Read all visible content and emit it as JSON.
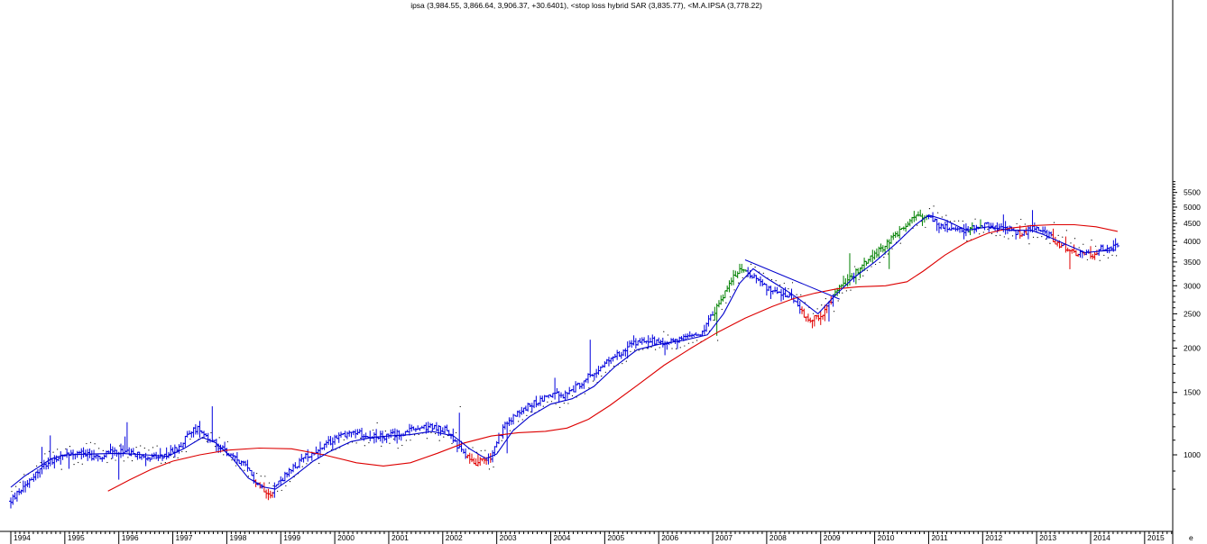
{
  "chart_data": {
    "type": "ohlc-bar",
    "title": "ipsa (3,984.55, 3,866.64, 3,906.37, +30.6401), <stop loss hybrid SAR (3,835.77), <M.A.IPSA (3,778.22)",
    "y_scale": "log",
    "ylim": [
      790,
      5950
    ],
    "xlim": [
      1994.0,
      2015.4
    ],
    "grid": false,
    "x_ticks": [
      "1994",
      "1995",
      "1996",
      "1997",
      "1998",
      "1999",
      "2000",
      "2001",
      "2002",
      "2003",
      "2004",
      "2005",
      "2006",
      "2007",
      "2008",
      "2009",
      "2010",
      "2011",
      "2012",
      "2013",
      "2014",
      "2015"
    ],
    "y_ticks": [
      1000,
      1500,
      2000,
      2500,
      3000,
      3500,
      4000,
      4500,
      5000,
      5500
    ],
    "axis_corner_label": "e",
    "colors": {
      "up_trend": "#008000",
      "down_trend": "#e00000",
      "neutral": "#0000dd",
      "fast_ma": "#0000cc",
      "slow_ma": "#dd0000",
      "sar": "#000000"
    },
    "price_anchors": [
      [
        1994.0,
        740
      ],
      [
        1994.3,
        840
      ],
      [
        1994.7,
        960
      ],
      [
        1995.0,
        1000
      ],
      [
        1995.3,
        1020
      ],
      [
        1995.6,
        980
      ],
      [
        1995.9,
        1030
      ],
      [
        1996.2,
        1010
      ],
      [
        1996.5,
        990
      ],
      [
        1996.8,
        980
      ],
      [
        1997.1,
        1050
      ],
      [
        1997.35,
        1170
      ],
      [
        1997.5,
        1190
      ],
      [
        1997.7,
        1100
      ],
      [
        1998.0,
        1010
      ],
      [
        1998.3,
        940
      ],
      [
        1998.6,
        820
      ],
      [
        1998.8,
        780
      ],
      [
        1999.0,
        850
      ],
      [
        1999.25,
        920
      ],
      [
        1999.5,
        1000
      ],
      [
        1999.8,
        1050
      ],
      [
        2000.0,
        1120
      ],
      [
        2000.3,
        1160
      ],
      [
        2000.6,
        1140
      ],
      [
        2000.9,
        1120
      ],
      [
        2001.2,
        1150
      ],
      [
        2001.5,
        1180
      ],
      [
        2001.8,
        1200
      ],
      [
        2002.1,
        1170
      ],
      [
        2002.3,
        1040
      ],
      [
        2002.6,
        950
      ],
      [
        2002.9,
        980
      ],
      [
        2003.1,
        1180
      ],
      [
        2003.4,
        1320
      ],
      [
        2003.7,
        1400
      ],
      [
        2004.0,
        1480
      ],
      [
        2004.3,
        1470
      ],
      [
        2004.6,
        1620
      ],
      [
        2004.9,
        1750
      ],
      [
        2005.2,
        1900
      ],
      [
        2005.5,
        2050
      ],
      [
        2005.8,
        2100
      ],
      [
        2006.1,
        2080
      ],
      [
        2006.5,
        2140
      ],
      [
        2006.8,
        2220
      ],
      [
        2007.1,
        2650
      ],
      [
        2007.35,
        3150
      ],
      [
        2007.6,
        3380
      ],
      [
        2007.85,
        3050
      ],
      [
        2008.1,
        2900
      ],
      [
        2008.4,
        2840
      ],
      [
        2008.7,
        2450
      ],
      [
        2008.9,
        2420
      ],
      [
        2009.1,
        2560
      ],
      [
        2009.3,
        2950
      ],
      [
        2009.6,
        3200
      ],
      [
        2009.9,
        3600
      ],
      [
        2010.2,
        3900
      ],
      [
        2010.5,
        4350
      ],
      [
        2010.8,
        4750
      ],
      [
        2011.0,
        4730
      ],
      [
        2011.2,
        4450
      ],
      [
        2011.5,
        4250
      ],
      [
        2011.8,
        4350
      ],
      [
        2012.1,
        4450
      ],
      [
        2012.4,
        4350
      ],
      [
        2012.7,
        4220
      ],
      [
        2012.95,
        4350
      ],
      [
        2013.15,
        4250
      ],
      [
        2013.4,
        3950
      ],
      [
        2013.7,
        3720
      ],
      [
        2014.0,
        3650
      ],
      [
        2014.2,
        3820
      ],
      [
        2014.5,
        3900
      ]
    ],
    "series": [
      {
        "values": [
          [
            1994.0,
            810
          ],
          [
            1994.25,
            870
          ],
          [
            1994.5,
            920
          ],
          [
            1994.75,
            975
          ],
          [
            1995.0,
            1000
          ],
          [
            1995.5,
            1005
          ],
          [
            1996.0,
            1010
          ],
          [
            1996.5,
            1000
          ],
          [
            1996.9,
            990
          ],
          [
            1997.2,
            1040
          ],
          [
            1997.55,
            1120
          ],
          [
            1997.8,
            1080
          ],
          [
            1998.1,
            980
          ],
          [
            1998.4,
            860
          ],
          [
            1998.7,
            810
          ],
          [
            1998.9,
            800
          ],
          [
            1999.2,
            860
          ],
          [
            1999.6,
            960
          ],
          [
            1999.9,
            1020
          ],
          [
            2000.3,
            1090
          ],
          [
            2000.7,
            1120
          ],
          [
            2001.0,
            1130
          ],
          [
            2001.4,
            1140
          ],
          [
            2001.8,
            1165
          ],
          [
            2002.2,
            1130
          ],
          [
            2002.5,
            1040
          ],
          [
            2002.8,
            975
          ],
          [
            2003.0,
            1005
          ],
          [
            2003.3,
            1170
          ],
          [
            2003.6,
            1280
          ],
          [
            2004.0,
            1390
          ],
          [
            2004.4,
            1440
          ],
          [
            2004.8,
            1560
          ],
          [
            2005.2,
            1780
          ],
          [
            2005.6,
            1980
          ],
          [
            2006.0,
            2050
          ],
          [
            2006.5,
            2110
          ],
          [
            2006.9,
            2180
          ],
          [
            2007.2,
            2500
          ],
          [
            2007.5,
            3050
          ],
          [
            2007.75,
            3350
          ],
          [
            2008.0,
            3150
          ],
          [
            2008.3,
            2950
          ],
          [
            2008.6,
            2750
          ],
          [
            2008.95,
            2500
          ],
          [
            2009.25,
            2800
          ],
          [
            2009.6,
            3150
          ],
          [
            2010.0,
            3500
          ],
          [
            2010.4,
            3950
          ],
          [
            2010.75,
            4450
          ],
          [
            2011.0,
            4750
          ],
          [
            2011.3,
            4600
          ],
          [
            2011.7,
            4300
          ],
          [
            2012.1,
            4400
          ],
          [
            2012.5,
            4300
          ],
          [
            2012.9,
            4300
          ],
          [
            2013.1,
            4200
          ],
          [
            2013.5,
            3950
          ],
          [
            2013.9,
            3720
          ],
          [
            2014.2,
            3760
          ],
          [
            2014.45,
            3780
          ]
        ]
      },
      {
        "values": [
          [
            1995.8,
            790
          ],
          [
            1996.2,
            850
          ],
          [
            1996.6,
            910
          ],
          [
            1997.0,
            960
          ],
          [
            1997.5,
            1000
          ],
          [
            1998.0,
            1030
          ],
          [
            1998.6,
            1045
          ],
          [
            1999.2,
            1040
          ],
          [
            1999.8,
            1000
          ],
          [
            2000.4,
            950
          ],
          [
            2000.9,
            930
          ],
          [
            2001.4,
            950
          ],
          [
            2001.9,
            1010
          ],
          [
            2002.4,
            1080
          ],
          [
            2002.9,
            1130
          ],
          [
            2003.4,
            1155
          ],
          [
            2003.9,
            1165
          ],
          [
            2004.3,
            1190
          ],
          [
            2004.7,
            1260
          ],
          [
            2005.1,
            1380
          ],
          [
            2005.6,
            1570
          ],
          [
            2006.1,
            1790
          ],
          [
            2006.6,
            2000
          ],
          [
            2007.1,
            2220
          ],
          [
            2007.6,
            2430
          ],
          [
            2008.1,
            2620
          ],
          [
            2008.5,
            2760
          ],
          [
            2008.9,
            2860
          ],
          [
            2009.3,
            2940
          ],
          [
            2009.7,
            2980
          ],
          [
            2010.2,
            3000
          ],
          [
            2010.6,
            3080
          ],
          [
            2010.9,
            3300
          ],
          [
            2011.3,
            3660
          ],
          [
            2011.7,
            3980
          ],
          [
            2012.1,
            4220
          ],
          [
            2012.5,
            4360
          ],
          [
            2012.9,
            4430
          ],
          [
            2013.3,
            4460
          ],
          [
            2013.7,
            4460
          ],
          [
            2014.1,
            4400
          ],
          [
            2014.5,
            4270
          ]
        ]
      }
    ],
    "trend_line": [
      [
        2007.6,
        3550
      ],
      [
        2009.35,
        2750
      ]
    ]
  }
}
